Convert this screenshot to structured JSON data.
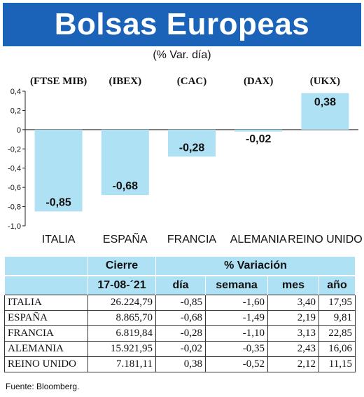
{
  "header": {
    "title": "Bolsas Europeas",
    "subtitle": "(% Var. día)"
  },
  "chart_data": {
    "type": "bar",
    "indices": [
      "(FTSE MIB)",
      "(IBEX)",
      "(CAC)",
      "(DAX)",
      "(UKX)"
    ],
    "categories": [
      "ITALIA",
      "ESPAÑA",
      "FRANCIA",
      "ALEMANIA",
      "REINO UNIDO"
    ],
    "values": [
      -0.85,
      -0.68,
      -0.28,
      -0.02,
      0.38
    ],
    "value_labels": [
      "-0,85",
      "-0,68",
      "-0,28",
      "-0,02",
      "0,38"
    ],
    "yticks": [
      "0,4",
      "0,2",
      "0",
      "-0,2",
      "-0,4",
      "-0,6",
      "-0,8",
      "-1,0"
    ],
    "ytick_values": [
      0.4,
      0.2,
      0,
      -0.2,
      -0.4,
      -0.6,
      -0.8,
      -1.0
    ],
    "ylim": [
      -1.0,
      0.4
    ],
    "bar_color": "#aee1f4",
    "grid": false
  },
  "table": {
    "headers_top": [
      "Cierre",
      "% Variación"
    ],
    "headers_sub": [
      "17-08-´21",
      "día",
      "semana",
      "mes",
      "año"
    ],
    "rows": [
      {
        "country": "ITALIA",
        "cierre": "26.224,79",
        "dia": "-0,85",
        "semana": "-1,60",
        "mes": "3,40",
        "ano": "17,95"
      },
      {
        "country": "ESPAÑA",
        "cierre": "8.865,70",
        "dia": "-0,68",
        "semana": "-1,49",
        "mes": "2,19",
        "ano": "9,81"
      },
      {
        "country": "FRANCIA",
        "cierre": "6.819,84",
        "dia": "-0,28",
        "semana": "-1,10",
        "mes": "3,13",
        "ano": "22,85"
      },
      {
        "country": "ALEMANIA",
        "cierre": "15.921,95",
        "dia": "-0,02",
        "semana": "-0,35",
        "mes": "2,43",
        "ano": "16,06"
      },
      {
        "country": "REINO UNIDO",
        "cierre": "7.181,11",
        "dia": "0,38",
        "semana": "-0,52",
        "mes": "2,12",
        "ano": "11,15"
      }
    ]
  },
  "source": "Fuente: Bloomberg.",
  "colors": {
    "banner": "#1b63b8",
    "accent_light": "#aee1f4"
  }
}
